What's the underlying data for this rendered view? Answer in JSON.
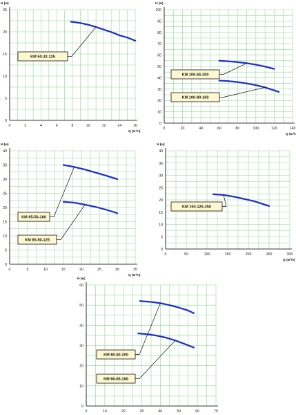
{
  "colors": {
    "grid": "#8ed88e",
    "curve": "#1f2fd0",
    "label_fill": "#fdf8cf",
    "axis": "#000000"
  },
  "chart_data": [
    {
      "id": "km-50",
      "type": "line",
      "ylabel": "H (м)",
      "xlabel": "Q (м³/ч)",
      "xlim": [
        0,
        16
      ],
      "ylim": [
        0,
        25
      ],
      "x_ticks": [
        0,
        2,
        4,
        6,
        8,
        10,
        12,
        14,
        16
      ],
      "y_ticks": [
        0,
        5,
        10,
        15,
        20,
        25
      ],
      "grid": true,
      "series": [
        {
          "name": "KM 50-32-125",
          "x": [
            7.8,
            9,
            10,
            11,
            12,
            13,
            14,
            15,
            16
          ],
          "y": [
            22.3,
            22.0,
            21.6,
            21.1,
            20.5,
            19.9,
            19.2,
            18.7,
            18.0
          ]
        }
      ]
    },
    {
      "id": "km-100",
      "type": "line",
      "ylabel": "H (м)",
      "xlabel": "Q (м³/ч)",
      "xlim": [
        0,
        140
      ],
      "ylim": [
        0,
        100
      ],
      "x_ticks": [
        0,
        20,
        40,
        60,
        80,
        100,
        120,
        140
      ],
      "y_ticks": [
        0,
        10,
        20,
        30,
        40,
        50,
        60,
        70,
        80,
        90,
        100
      ],
      "grid": true,
      "series": [
        {
          "name": "KM 100-65-200",
          "x": [
            60,
            70,
            80,
            90,
            100,
            110,
            120
          ],
          "y": [
            55.0,
            54.5,
            53.8,
            52.8,
            51.5,
            49.8,
            47.8
          ]
        },
        {
          "name": "KM 100-80-160",
          "x": [
            60,
            70,
            80,
            90,
            100,
            110,
            125
          ],
          "y": [
            37.5,
            37.0,
            36.2,
            35.0,
            33.5,
            31.5,
            27.5
          ]
        }
      ]
    },
    {
      "id": "km-65",
      "type": "line",
      "ylabel": "H (м)",
      "xlabel": "Q (м³/ч)",
      "xlim": [
        0,
        35
      ],
      "ylim": [
        0,
        40
      ],
      "x_ticks": [
        0,
        5,
        10,
        15,
        20,
        25,
        30,
        35
      ],
      "y_ticks": [
        0,
        5,
        10,
        15,
        20,
        25,
        30,
        35,
        40
      ],
      "grid": true,
      "series": [
        {
          "name": "KM 65-50-160",
          "x": [
            15,
            18,
            21,
            24,
            27,
            30
          ],
          "y": [
            35.0,
            34.3,
            33.4,
            32.3,
            31.2,
            30.0
          ]
        },
        {
          "name": "KM 65-50-125",
          "x": [
            15,
            18,
            21,
            24,
            27,
            30
          ],
          "y": [
            22.0,
            21.7,
            21.0,
            20.2,
            19.2,
            18.0
          ]
        }
      ]
    },
    {
      "id": "km-150",
      "type": "line",
      "ylabel": "H (м)",
      "xlabel": "Q (м³/ч)",
      "xlim": [
        0,
        300
      ],
      "ylim": [
        0,
        40
      ],
      "x_ticks": [
        0,
        50,
        100,
        150,
        200,
        250,
        300
      ],
      "y_ticks": [
        0,
        5,
        10,
        15,
        20,
        25,
        30,
        35,
        40
      ],
      "grid": true,
      "series": [
        {
          "name": "KM 150-125-250",
          "x": [
            115,
            140,
            165,
            190,
            215,
            250
          ],
          "y": [
            22.3,
            22.0,
            21.3,
            20.4,
            19.4,
            17.5
          ]
        }
      ]
    },
    {
      "id": "km-80",
      "type": "line",
      "ylabel": "H (м)",
      "xlabel": "Q (м³/ч)",
      "xlim": [
        0,
        70
      ],
      "ylim": [
        0,
        60
      ],
      "x_ticks": [
        0,
        10,
        20,
        30,
        40,
        50,
        60,
        70
      ],
      "y_ticks": [
        0,
        10,
        20,
        30,
        40,
        50,
        60
      ],
      "grid": true,
      "series": [
        {
          "name": "KM 80-50-200",
          "x": [
            29,
            35,
            40,
            45,
            50,
            55,
            58
          ],
          "y": [
            52.0,
            51.6,
            51.0,
            50.0,
            48.8,
            47.3,
            46.0
          ]
        },
        {
          "name": "KM 80-65-160",
          "x": [
            28,
            33,
            38,
            43,
            48,
            53,
            58
          ],
          "y": [
            36.0,
            35.6,
            34.9,
            33.9,
            32.5,
            30.8,
            29.0
          ]
        }
      ]
    }
  ]
}
